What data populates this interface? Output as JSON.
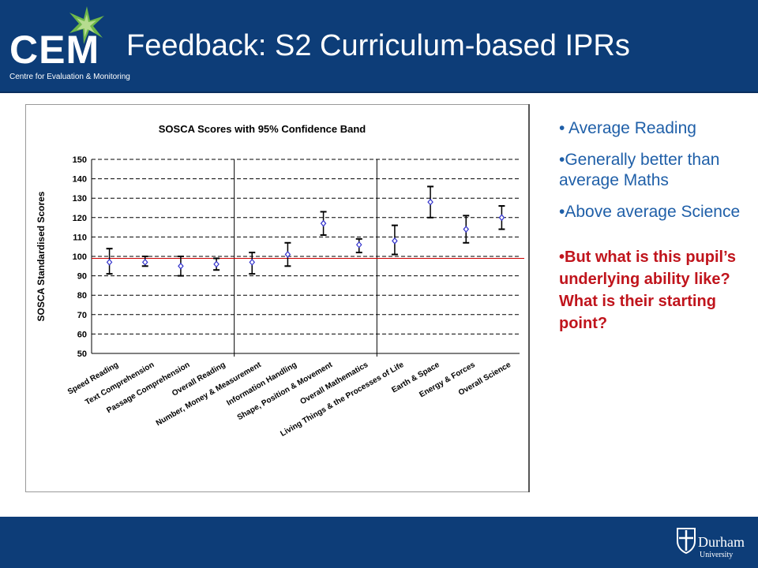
{
  "header": {
    "logo_text": "CEM",
    "logo_subtitle": "Centre for Evaluation & Monitoring",
    "title": "Feedback: S2 Curriculum-based IPRs"
  },
  "footer": {
    "university_name": "Durham",
    "university_sub": "University"
  },
  "bullets": [
    "• Average Reading",
    "•Generally better than average Maths",
    "•Above average Science"
  ],
  "highlight": "•But what is this pupil’s underlying ability like? What is their starting point?",
  "colors": {
    "brand_blue": "#0d3d78",
    "bullet_blue": "#1f5fa8",
    "highlight_red": "#c0141c",
    "reference_line": "#cc0000",
    "marker": "#3333cc"
  },
  "chart_data": {
    "type": "scatter",
    "title": "SOSCA Scores with 95% Confidence Band",
    "ylabel": "SOSCA Standardised Scores",
    "xlabel": "",
    "ylim": [
      50,
      150
    ],
    "yticks": [
      50,
      60,
      70,
      80,
      90,
      100,
      110,
      120,
      130,
      140,
      150
    ],
    "grid": true,
    "reference_line": 99,
    "group_dividers_after": [
      "Overall Reading",
      "Overall Mathematics"
    ],
    "categories": [
      "Speed Reading",
      "Text Comprehension",
      "Passage Comprehension",
      "Overall Reading",
      "Number, Money & Measurement",
      "Information Handling",
      "Shape, Position & Movement",
      "Overall Mathematics",
      "Living Things & the Processes of Life",
      "Earth & Space",
      "Energy & Forces",
      "Overall Science"
    ],
    "series": [
      {
        "values": [
          97,
          97,
          95,
          96,
          97,
          101,
          117,
          106,
          108,
          128,
          114,
          120
        ],
        "lower": [
          91,
          95,
          90,
          93,
          91,
          95,
          111,
          102,
          101,
          120,
          107,
          114
        ],
        "upper": [
          104,
          100,
          100,
          99,
          102,
          107,
          123,
          109,
          116,
          136,
          121,
          126
        ]
      }
    ]
  }
}
